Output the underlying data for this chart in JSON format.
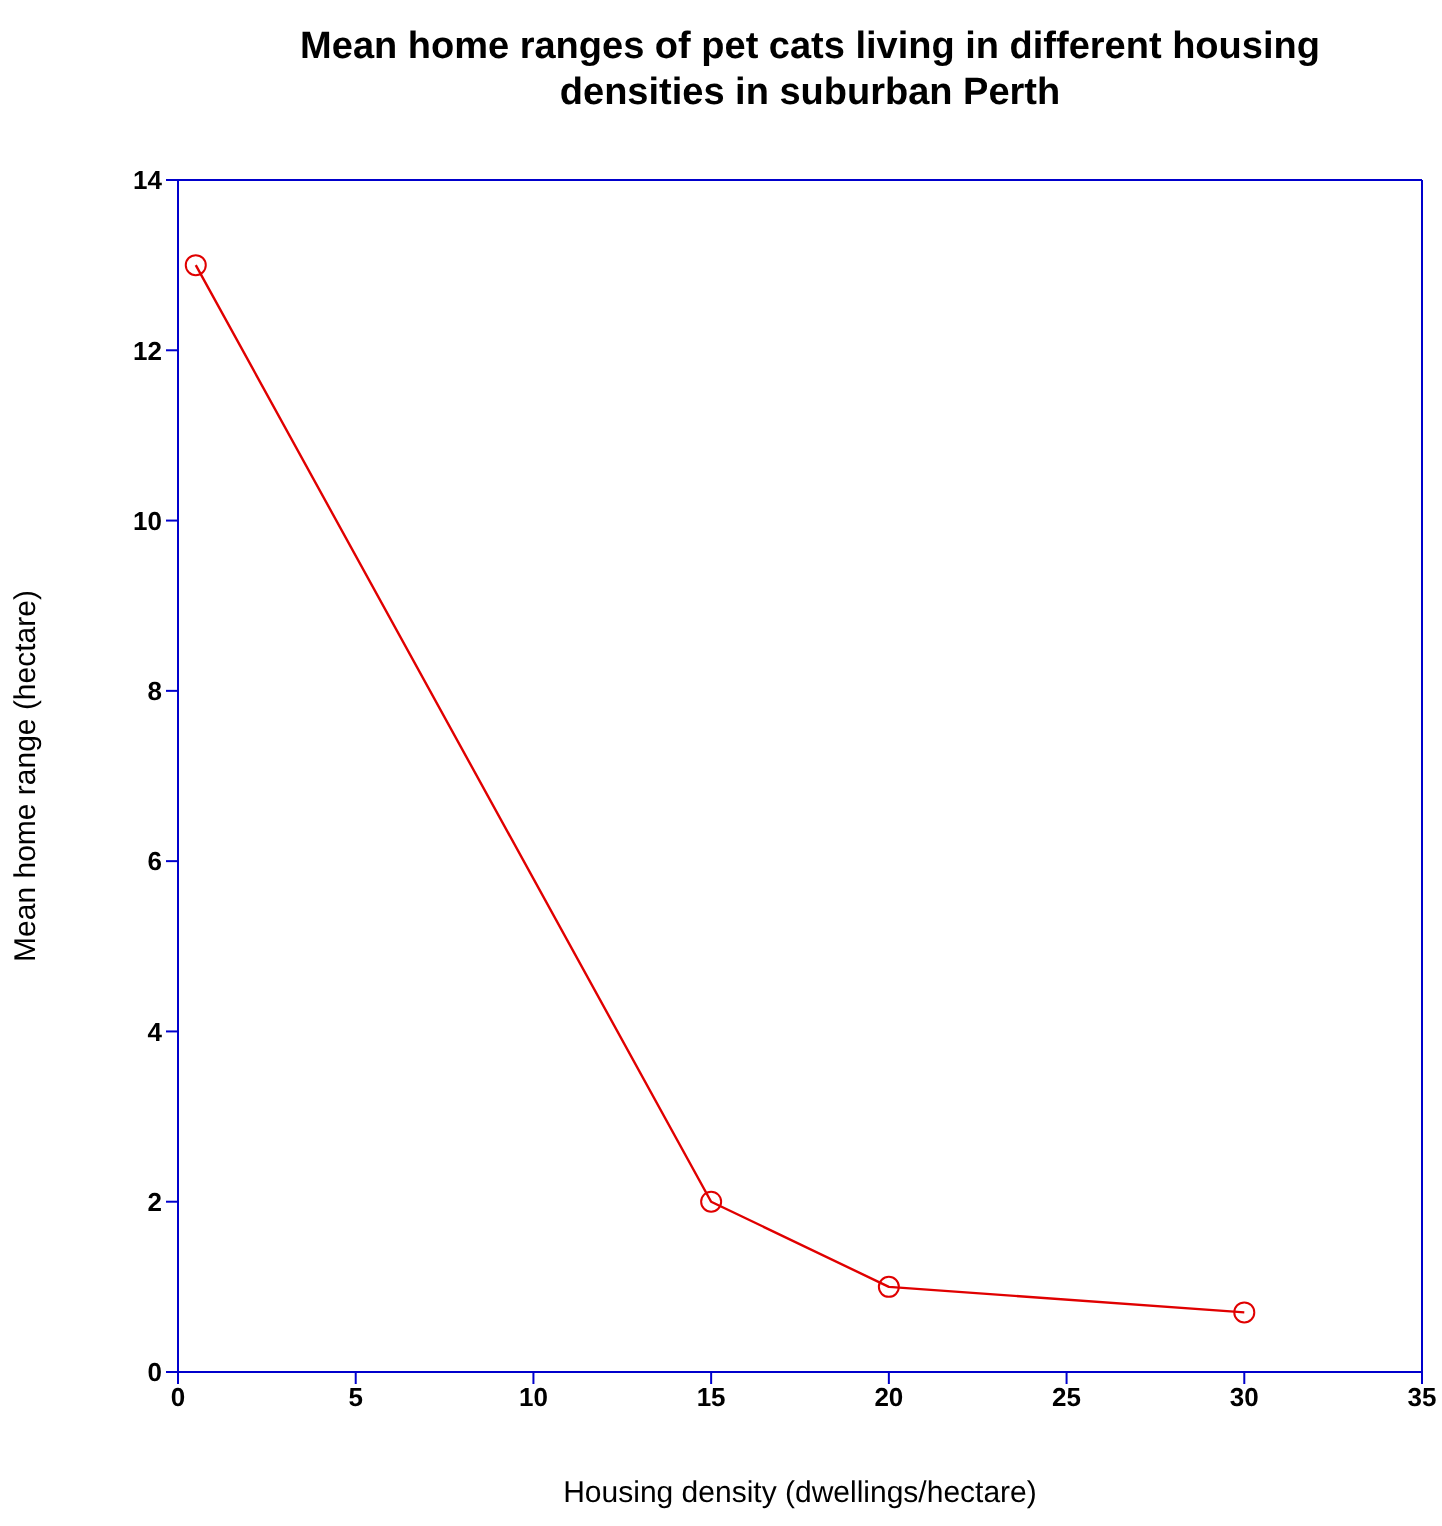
{
  "chart_data": {
    "type": "line",
    "title": "Mean home ranges of pet cats living in different housing densities in suburban Perth",
    "xlabel": "Housing density (dwellings/hectare)",
    "ylabel": "Mean home range (hectare)",
    "x": [
      0.5,
      15,
      20,
      30
    ],
    "series": [
      {
        "color": "#e00000",
        "values": [
          13,
          2,
          1,
          0.7
        ]
      }
    ],
    "xlim": [
      0,
      35
    ],
    "xticks": [
      0,
      5,
      10,
      15,
      20,
      25,
      30,
      35
    ],
    "ylim": [
      0,
      14
    ],
    "yticks": [
      0,
      2,
      4,
      6,
      8,
      10,
      12,
      14
    ],
    "marker": "circle",
    "line_style": "solid"
  }
}
